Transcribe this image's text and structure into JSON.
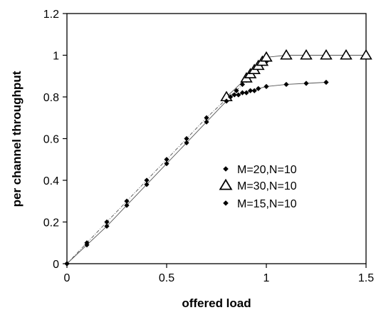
{
  "chart_data": {
    "type": "scatter",
    "title": "",
    "xlabel": "offered load",
    "ylabel": "per channel throughput",
    "xlim": [
      0,
      1.5
    ],
    "ylim": [
      0,
      1.2
    ],
    "xticks": [
      0,
      0.5,
      1,
      1.5
    ],
    "xtick_labels": [
      "0",
      "0.5",
      "1",
      "1.5"
    ],
    "yticks": [
      0,
      0.2,
      0.4,
      0.6,
      0.8,
      1.0,
      1.2
    ],
    "ytick_labels": [
      "0",
      "0.2",
      "0.4",
      "0.6",
      "0.8",
      "1",
      "1.2"
    ],
    "grid": false,
    "legend_position": "center-right",
    "series": [
      {
        "name": "M=20,N=10",
        "marker": "diamond",
        "color": "#000000",
        "x": [
          0,
          0.1,
          0.2,
          0.3,
          0.4,
          0.5,
          0.6,
          0.7,
          0.8,
          0.85,
          0.88,
          0.9,
          0.92,
          0.95,
          0.97,
          1.0
        ],
        "y": [
          0,
          0.1,
          0.2,
          0.3,
          0.4,
          0.5,
          0.6,
          0.7,
          0.79,
          0.83,
          0.86,
          0.88,
          0.9,
          0.93,
          0.95,
          0.97
        ]
      },
      {
        "name": "M=30,N=10",
        "marker": "triangle",
        "color": "#000000",
        "x": [
          0.8,
          0.9,
          0.92,
          0.94,
          0.96,
          0.98,
          1.0,
          1.1,
          1.2,
          1.3,
          1.4,
          1.5
        ],
        "y": [
          0.8,
          0.89,
          0.91,
          0.93,
          0.95,
          0.97,
          0.99,
          1.0,
          1.0,
          1.0,
          1.0,
          1.0
        ]
      },
      {
        "name": "M=15,N=10",
        "marker": "diamond",
        "color": "#000000",
        "x": [
          0,
          0.1,
          0.2,
          0.3,
          0.4,
          0.5,
          0.6,
          0.7,
          0.8,
          0.82,
          0.84,
          0.86,
          0.88,
          0.9,
          0.92,
          0.94,
          0.96,
          1.0,
          1.1,
          1.2,
          1.3
        ],
        "y": [
          0,
          0.09,
          0.18,
          0.28,
          0.38,
          0.48,
          0.58,
          0.68,
          0.78,
          0.8,
          0.81,
          0.81,
          0.82,
          0.82,
          0.83,
          0.83,
          0.84,
          0.85,
          0.86,
          0.865,
          0.87
        ]
      }
    ],
    "legend": [
      {
        "label": "M=20,N=10",
        "marker": "diamond"
      },
      {
        "label": "M=30,N=10",
        "marker": "triangle"
      },
      {
        "label": "M=15,N=10",
        "marker": "diamond"
      }
    ]
  }
}
